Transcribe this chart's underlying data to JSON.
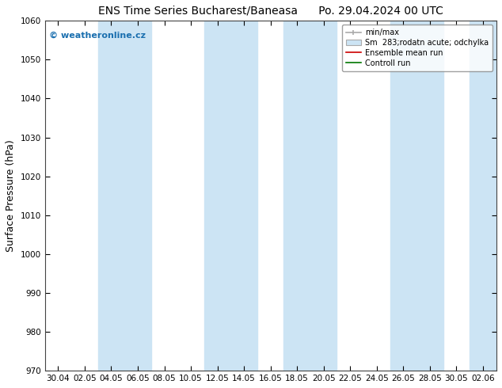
{
  "title_left": "ENS Time Series Bucharest/Baneasa",
  "title_right": "Po. 29.04.2024 00 UTC",
  "ylabel": "Surface Pressure (hPa)",
  "ylim": [
    970,
    1060
  ],
  "yticks": [
    970,
    980,
    990,
    1000,
    1010,
    1020,
    1030,
    1040,
    1050,
    1060
  ],
  "xtick_labels": [
    "30.04",
    "02.05",
    "04.05",
    "06.05",
    "08.05",
    "10.05",
    "12.05",
    "14.05",
    "16.05",
    "18.05",
    "20.05",
    "22.05",
    "24.05",
    "26.05",
    "28.05",
    "30.05",
    "02.06"
  ],
  "background_color": "#ffffff",
  "plot_bg_color": "#ffffff",
  "band_color": "#cce4f4",
  "watermark": "© weatheronline.cz",
  "watermark_color": "#1a6faf",
  "legend_entries": [
    "min/max",
    "Sm  283;rodatn acute; odchylka",
    "Ensemble mean run",
    "Controll run"
  ],
  "legend_line_colors": [
    "#aaaaaa",
    "#aaaaaa",
    "#cc0000",
    "#007700"
  ],
  "title_fontsize": 10,
  "tick_fontsize": 7.5,
  "ylabel_fontsize": 9,
  "band_indices": [
    2,
    3,
    6,
    7,
    9,
    10,
    13,
    14,
    16
  ]
}
